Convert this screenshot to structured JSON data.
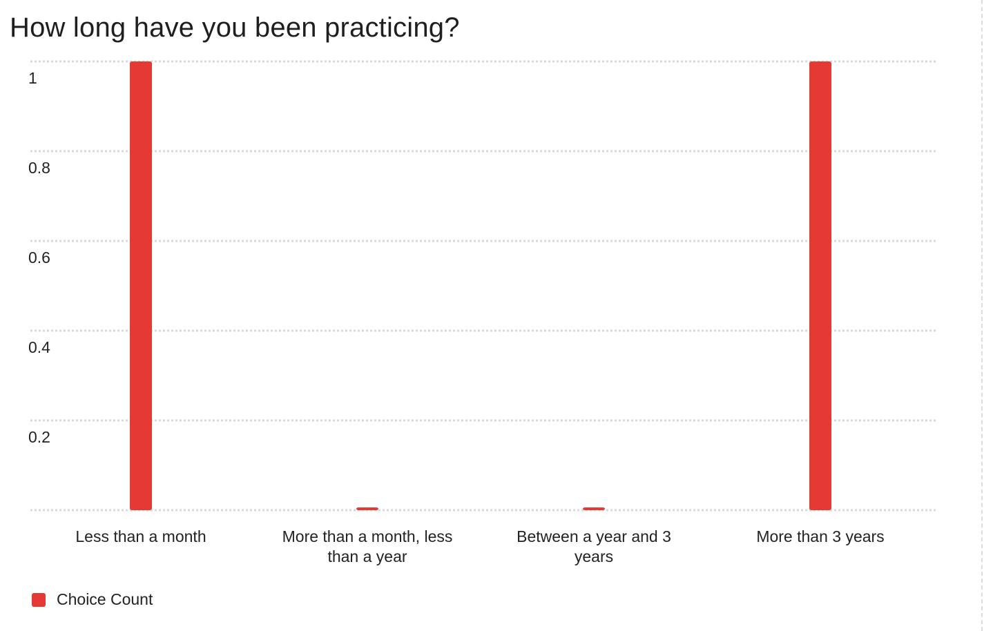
{
  "chart_data": {
    "type": "bar",
    "title": "How long have you been practicing?",
    "categories": [
      [
        "Less than a month"
      ],
      [
        "More than a month, less",
        "than a year"
      ],
      [
        "Between a year and 3",
        "years"
      ],
      [
        "More than 3 years"
      ]
    ],
    "series": [
      {
        "name": "Choice Count",
        "values": [
          1,
          0,
          0,
          1
        ],
        "color": "#e53935"
      }
    ],
    "yticks": [
      "0.2",
      "0.4",
      "0.6",
      "0.8",
      "1"
    ],
    "ylim": [
      0,
      1
    ],
    "grid": true,
    "legend_position": "bottom-left"
  }
}
